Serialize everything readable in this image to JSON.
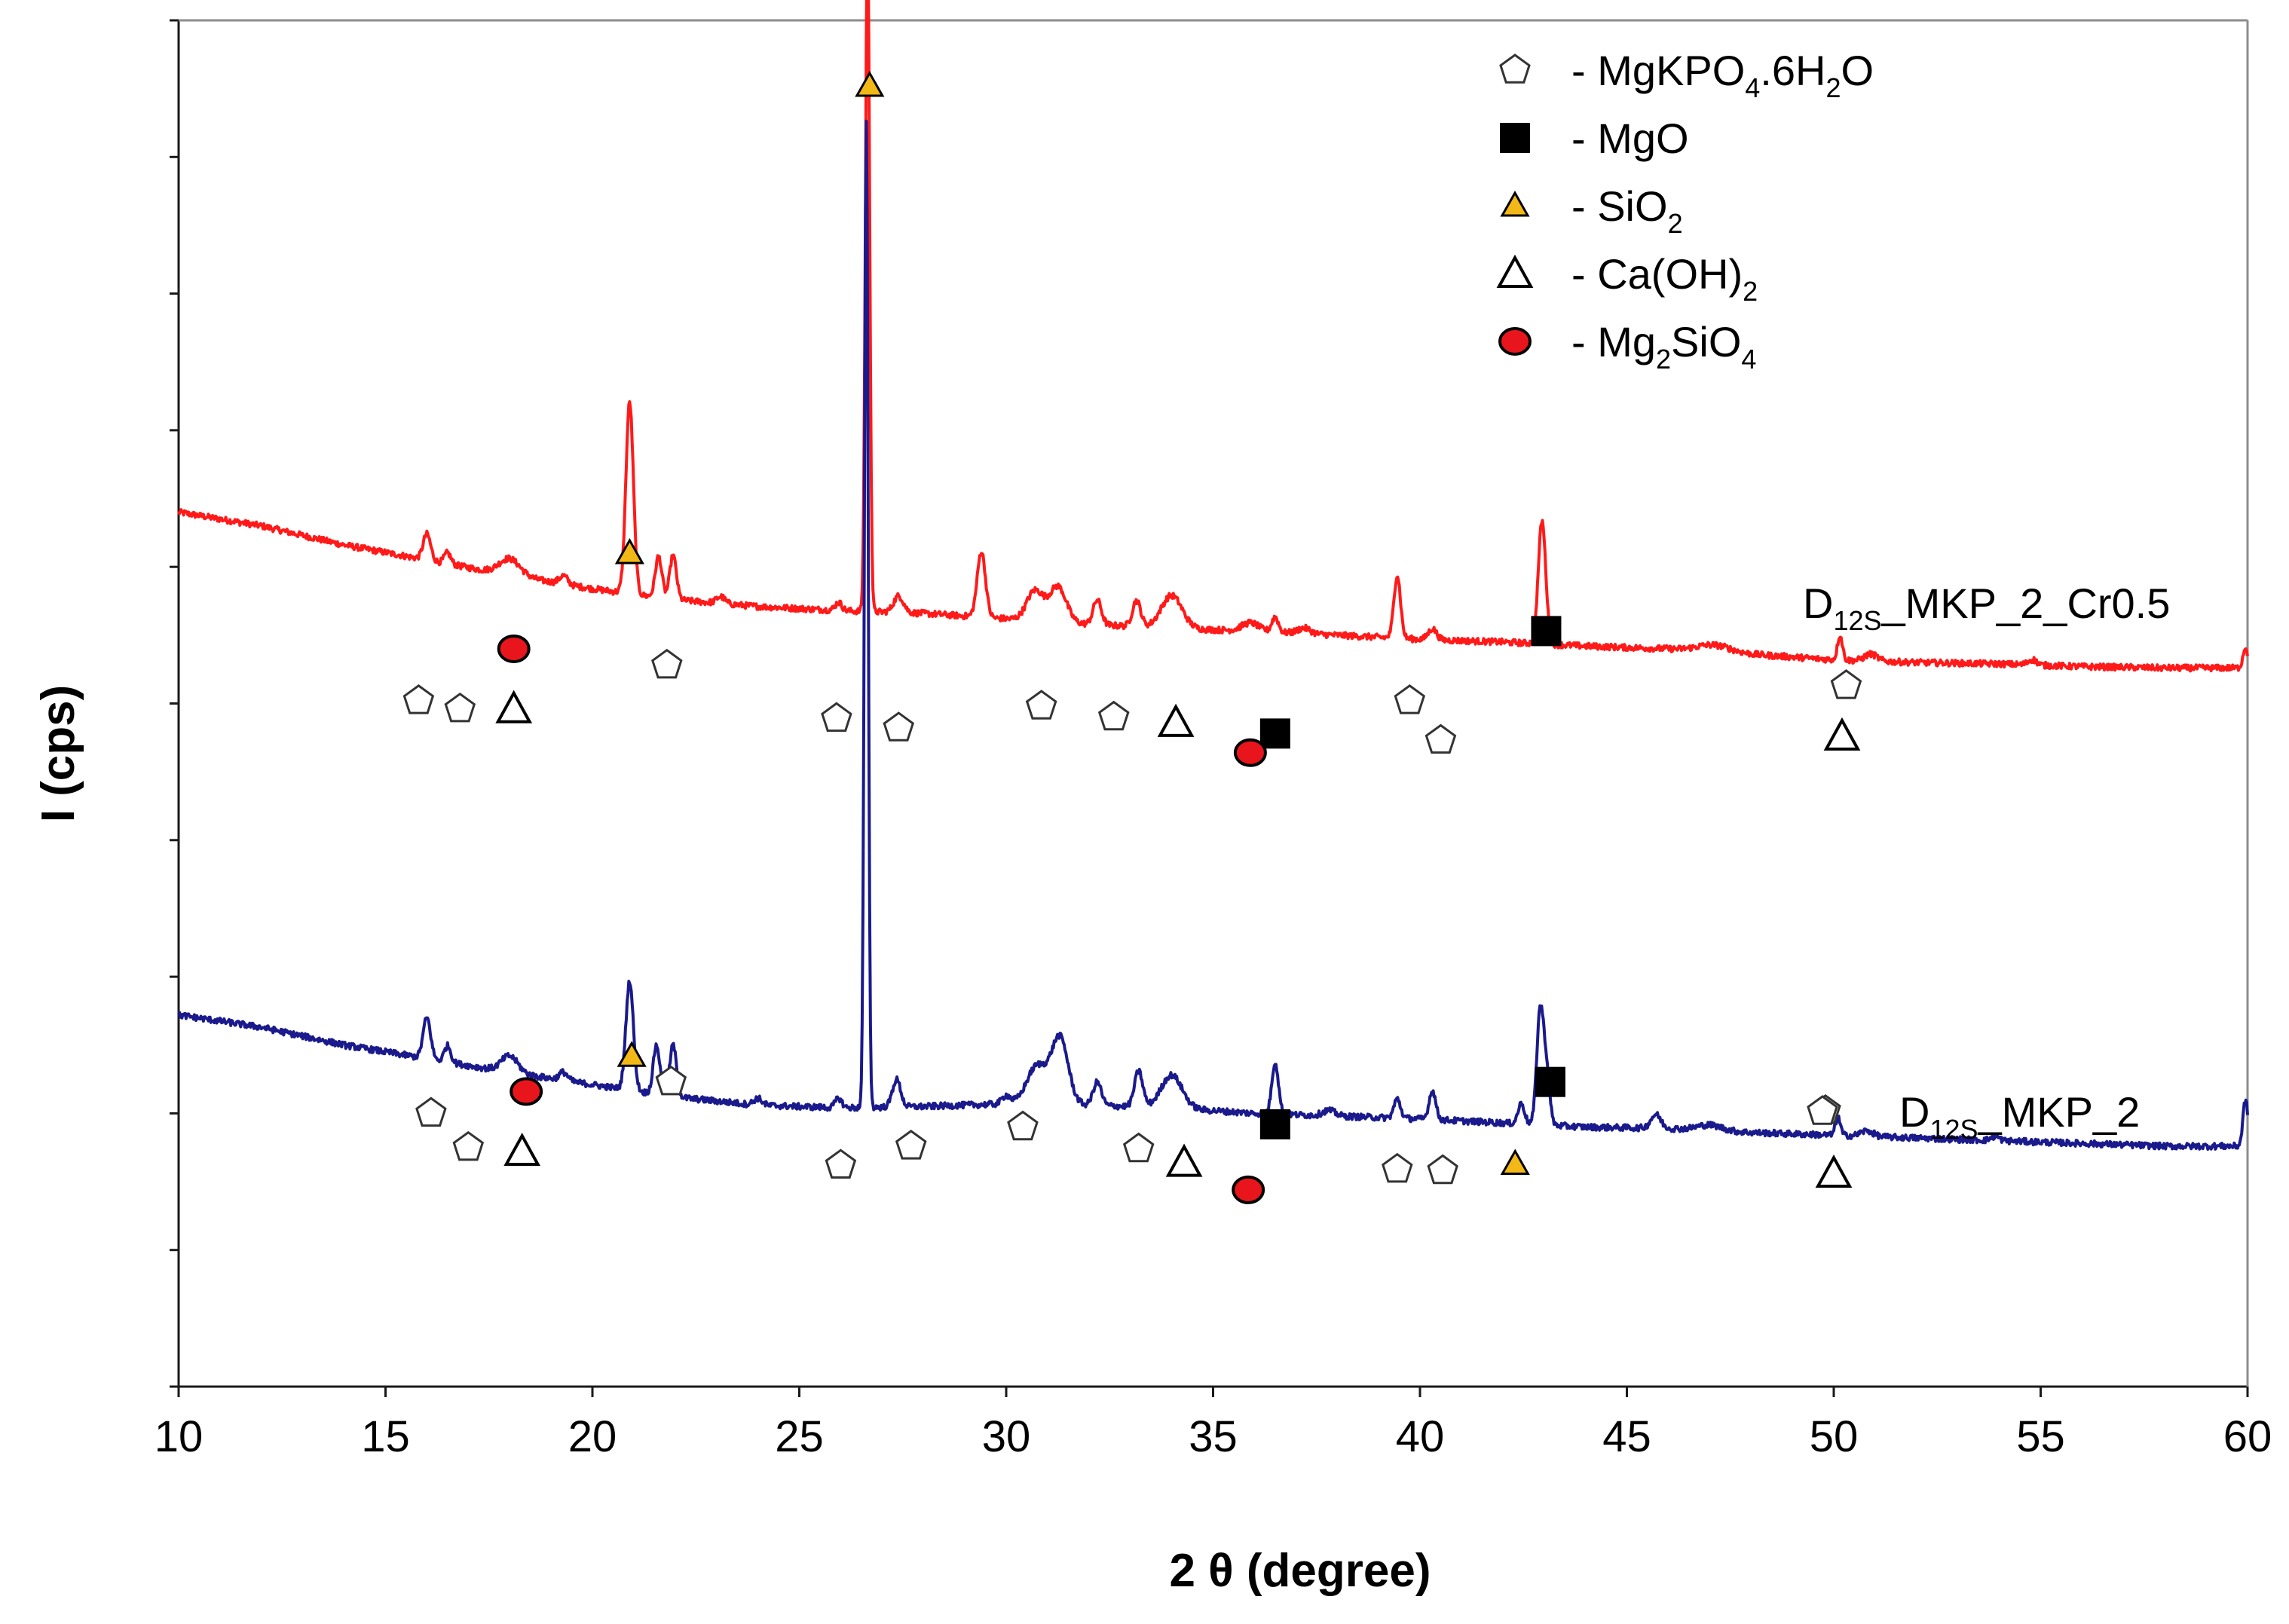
{
  "chart_data": {
    "type": "line",
    "title": "",
    "xlabel": "2 θ (degree)",
    "ylabel": "I (cps)",
    "xlim": [
      10,
      60
    ],
    "xticks": [
      "10",
      "15",
      "20",
      "25",
      "30",
      "35",
      "40",
      "45",
      "50",
      "55",
      "60"
    ],
    "ytick_count": 10,
    "yticklabels_shown": false,
    "y_units": "relative intensity (arbitrary, stacked)",
    "colors": {
      "cr": "#ff1a1a",
      "mkp": "#1a1a8c",
      "sio2_fill": "#f2b818",
      "mg2sio4_fill": "#e8161c",
      "mgo_fill": "#000000"
    },
    "series": [
      {
        "name": "cr",
        "label_main": "D",
        "label_sub": "12S",
        "label_rest": "_MKP_2_Cr0.5",
        "color": "#ff1a1a",
        "baseline": [
          [
            10,
            64.0
          ],
          [
            12,
            63.0
          ],
          [
            14,
            61.6
          ],
          [
            16,
            60.5
          ],
          [
            18,
            59.4
          ],
          [
            20,
            58.4
          ],
          [
            22,
            57.6
          ],
          [
            24,
            57.1
          ],
          [
            26,
            56.8
          ],
          [
            28,
            56.6
          ],
          [
            30,
            56.2
          ],
          [
            32,
            55.8
          ],
          [
            34,
            55.5
          ],
          [
            36,
            55.3
          ],
          [
            38,
            55.0
          ],
          [
            40,
            54.7
          ],
          [
            42,
            54.5
          ],
          [
            44,
            54.2
          ],
          [
            46,
            54.0
          ],
          [
            48,
            53.6
          ],
          [
            50,
            53.2
          ],
          [
            52,
            53.0
          ],
          [
            54,
            52.9
          ],
          [
            56,
            52.7
          ],
          [
            58,
            52.6
          ],
          [
            60,
            52.6
          ]
        ],
        "peaks": [
          [
            16.0,
            1.9,
            0.09
          ],
          [
            16.5,
            0.8,
            0.08
          ],
          [
            18.0,
            1.2,
            0.25
          ],
          [
            19.3,
            0.6,
            0.1
          ],
          [
            20.9,
            14.0,
            0.09
          ],
          [
            21.6,
            3.0,
            0.08
          ],
          [
            21.95,
            3.2,
            0.08
          ],
          [
            23.1,
            0.5,
            0.1
          ],
          [
            25.95,
            0.6,
            0.08
          ],
          [
            26.65,
            50.0,
            0.05
          ],
          [
            27.4,
            1.2,
            0.12
          ],
          [
            29.4,
            4.8,
            0.1
          ],
          [
            30.7,
            2.2,
            0.2
          ],
          [
            31.25,
            2.6,
            0.2
          ],
          [
            32.2,
            1.8,
            0.1
          ],
          [
            33.15,
            1.9,
            0.1
          ],
          [
            34.0,
            2.4,
            0.25
          ],
          [
            35.9,
            0.6,
            0.2
          ],
          [
            36.5,
            1.1,
            0.08
          ],
          [
            37.2,
            0.4,
            0.15
          ],
          [
            39.45,
            4.6,
            0.08
          ],
          [
            40.3,
            0.8,
            0.1
          ],
          [
            42.95,
            9.0,
            0.09
          ],
          [
            47.1,
            0.5,
            0.4
          ],
          [
            50.15,
            1.8,
            0.06
          ],
          [
            50.9,
            0.5,
            0.15
          ],
          [
            54.8,
            0.4,
            0.1
          ],
          [
            59.95,
            1.5,
            0.06
          ]
        ]
      },
      {
        "name": "mkp",
        "label_main": "D",
        "label_sub": "12S",
        "label_rest": "_MKP_2",
        "color": "#1a1a8c",
        "baseline": [
          [
            10,
            27.2
          ],
          [
            12,
            26.3
          ],
          [
            14,
            25.0
          ],
          [
            16,
            24.0
          ],
          [
            18,
            23.0
          ],
          [
            20,
            22.1
          ],
          [
            22,
            21.2
          ],
          [
            24,
            20.6
          ],
          [
            26,
            20.4
          ],
          [
            28,
            20.5
          ],
          [
            30,
            20.7
          ],
          [
            32,
            20.6
          ],
          [
            34,
            20.4
          ],
          [
            36,
            20.0
          ],
          [
            38,
            19.8
          ],
          [
            40,
            19.6
          ],
          [
            42,
            19.3
          ],
          [
            44,
            19.0
          ],
          [
            46,
            18.9
          ],
          [
            48,
            18.6
          ],
          [
            50,
            18.4
          ],
          [
            52,
            18.2
          ],
          [
            54,
            18.0
          ],
          [
            56,
            17.8
          ],
          [
            58,
            17.6
          ],
          [
            60,
            17.6
          ]
        ],
        "peaks": [
          [
            16.0,
            3.0,
            0.09
          ],
          [
            16.5,
            1.2,
            0.08
          ],
          [
            18.0,
            1.2,
            0.2
          ],
          [
            19.3,
            0.6,
            0.1
          ],
          [
            20.9,
            8.0,
            0.09
          ],
          [
            21.55,
            3.6,
            0.08
          ],
          [
            21.95,
            3.8,
            0.08
          ],
          [
            24.0,
            0.5,
            0.1
          ],
          [
            25.95,
            0.7,
            0.08
          ],
          [
            26.62,
            72.0,
            0.045
          ],
          [
            27.35,
            2.0,
            0.1
          ],
          [
            30.0,
            0.6,
            0.1
          ],
          [
            30.75,
            2.8,
            0.25
          ],
          [
            31.3,
            4.8,
            0.2
          ],
          [
            32.2,
            1.7,
            0.1
          ],
          [
            33.2,
            2.6,
            0.1
          ],
          [
            34.0,
            2.4,
            0.25
          ],
          [
            36.5,
            3.8,
            0.08
          ],
          [
            37.8,
            0.4,
            0.15
          ],
          [
            39.45,
            1.4,
            0.08
          ],
          [
            40.3,
            2.1,
            0.08
          ],
          [
            42.45,
            1.5,
            0.08
          ],
          [
            42.9,
            8.0,
            0.08
          ],
          [
            43.05,
            4.0,
            0.08
          ],
          [
            45.7,
            1.0,
            0.12
          ],
          [
            47.0,
            0.4,
            0.3
          ],
          [
            50.1,
            1.3,
            0.06
          ],
          [
            50.8,
            0.4,
            0.15
          ],
          [
            53.9,
            0.3,
            0.1
          ],
          [
            59.95,
            3.4,
            0.06
          ]
        ]
      }
    ],
    "legend": [
      {
        "marker": "pentagon",
        "prefix": "- MgKPO",
        "s1": "4",
        "mid": ".6H",
        "s2": "2",
        "suffix": "O"
      },
      {
        "marker": "square",
        "prefix": "- MgO",
        "s1": "",
        "mid": "",
        "s2": "",
        "suffix": ""
      },
      {
        "marker": "triangle-yellow",
        "prefix": "- SiO",
        "s1": "2",
        "mid": "",
        "s2": "",
        "suffix": ""
      },
      {
        "marker": "triangle-open",
        "prefix": "- Ca(OH)",
        "s1": "2",
        "mid": "",
        "s2": "",
        "suffix": ""
      },
      {
        "marker": "circle-red",
        "prefix": "- Mg",
        "s1": "2",
        "mid": "SiO",
        "s2": "4",
        "suffix": ""
      }
    ],
    "phase_markers": [
      {
        "type": "pentagon",
        "x": 15.8,
        "y": 50.2
      },
      {
        "type": "pentagon",
        "x": 16.8,
        "y": 49.6
      },
      {
        "type": "triangle-open",
        "x": 18.1,
        "y": 49.6
      },
      {
        "type": "circle-red",
        "x": 18.1,
        "y": 54.0
      },
      {
        "type": "triangle-yellow",
        "x": 20.9,
        "y": 61.0
      },
      {
        "type": "pentagon",
        "x": 21.8,
        "y": 52.8
      },
      {
        "type": "triangle-yellow",
        "x": 26.7,
        "y": 95.2
      },
      {
        "type": "pentagon",
        "x": 25.9,
        "y": 48.9
      },
      {
        "type": "pentagon",
        "x": 27.4,
        "y": 48.2
      },
      {
        "type": "pentagon",
        "x": 30.85,
        "y": 49.8
      },
      {
        "type": "pentagon",
        "x": 32.6,
        "y": 49.0
      },
      {
        "type": "triangle-open",
        "x": 34.1,
        "y": 48.6
      },
      {
        "type": "square",
        "x": 36.5,
        "y": 47.8
      },
      {
        "type": "circle-red",
        "x": 35.9,
        "y": 46.4
      },
      {
        "type": "pentagon",
        "x": 39.75,
        "y": 50.2
      },
      {
        "type": "pentagon",
        "x": 40.5,
        "y": 47.3
      },
      {
        "type": "square",
        "x": 43.05,
        "y": 55.3
      },
      {
        "type": "pentagon",
        "x": 50.3,
        "y": 51.3
      },
      {
        "type": "triangle-open",
        "x": 50.2,
        "y": 47.6
      },
      {
        "type": "pentagon",
        "x": 16.1,
        "y": 20.0
      },
      {
        "type": "pentagon",
        "x": 17.0,
        "y": 17.5
      },
      {
        "type": "triangle-open",
        "x": 18.3,
        "y": 17.2
      },
      {
        "type": "circle-red",
        "x": 18.4,
        "y": 21.6
      },
      {
        "type": "triangle-yellow",
        "x": 20.95,
        "y": 24.2
      },
      {
        "type": "pentagon",
        "x": 21.9,
        "y": 22.3
      },
      {
        "type": "pentagon",
        "x": 26.0,
        "y": 16.2
      },
      {
        "type": "pentagon",
        "x": 27.7,
        "y": 17.6
      },
      {
        "type": "pentagon",
        "x": 30.4,
        "y": 19.0
      },
      {
        "type": "pentagon",
        "x": 33.2,
        "y": 17.4
      },
      {
        "type": "triangle-open",
        "x": 34.3,
        "y": 16.4
      },
      {
        "type": "square",
        "x": 36.5,
        "y": 19.2
      },
      {
        "type": "circle-red",
        "x": 35.85,
        "y": 14.4
      },
      {
        "type": "pentagon",
        "x": 39.45,
        "y": 15.9
      },
      {
        "type": "pentagon",
        "x": 40.55,
        "y": 15.8
      },
      {
        "type": "triangle-yellow",
        "x": 42.3,
        "y": 16.3
      },
      {
        "type": "square",
        "x": 43.15,
        "y": 22.3
      },
      {
        "type": "pentagon",
        "x": 49.8,
        "y": 20.2
      },
      {
        "type": "triangle-open",
        "x": 50.0,
        "y": 15.6
      }
    ]
  }
}
